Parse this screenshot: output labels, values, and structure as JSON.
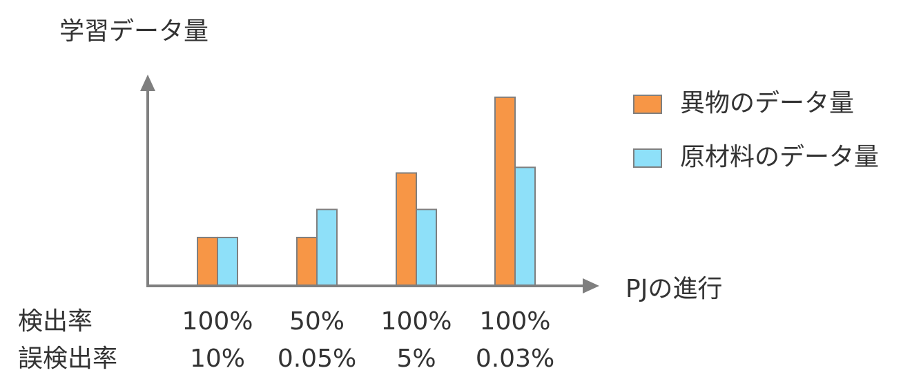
{
  "chart_data": {
    "type": "bar",
    "ylabel": "学習データ量",
    "xlabel": "PJの進行",
    "categories": [
      "",
      "",
      "",
      ""
    ],
    "series": [
      {
        "name": "異物のデータ量",
        "color": "#f79646",
        "values": [
          17,
          17,
          40,
          67
        ]
      },
      {
        "name": "原材料のデータ量",
        "color": "#8ee0f9",
        "values": [
          17,
          27,
          27,
          42
        ]
      }
    ],
    "ylim": [
      0,
      80
    ],
    "legend_position": "right",
    "axis_color": "#7f7f7f",
    "row_labels": [
      "検出率",
      "誤検出率"
    ],
    "detection_rate": [
      "100%",
      "50%",
      "100%",
      "100%"
    ],
    "false_detection_rate": [
      "10%",
      "0.05%",
      "5%",
      "0.03%"
    ]
  }
}
